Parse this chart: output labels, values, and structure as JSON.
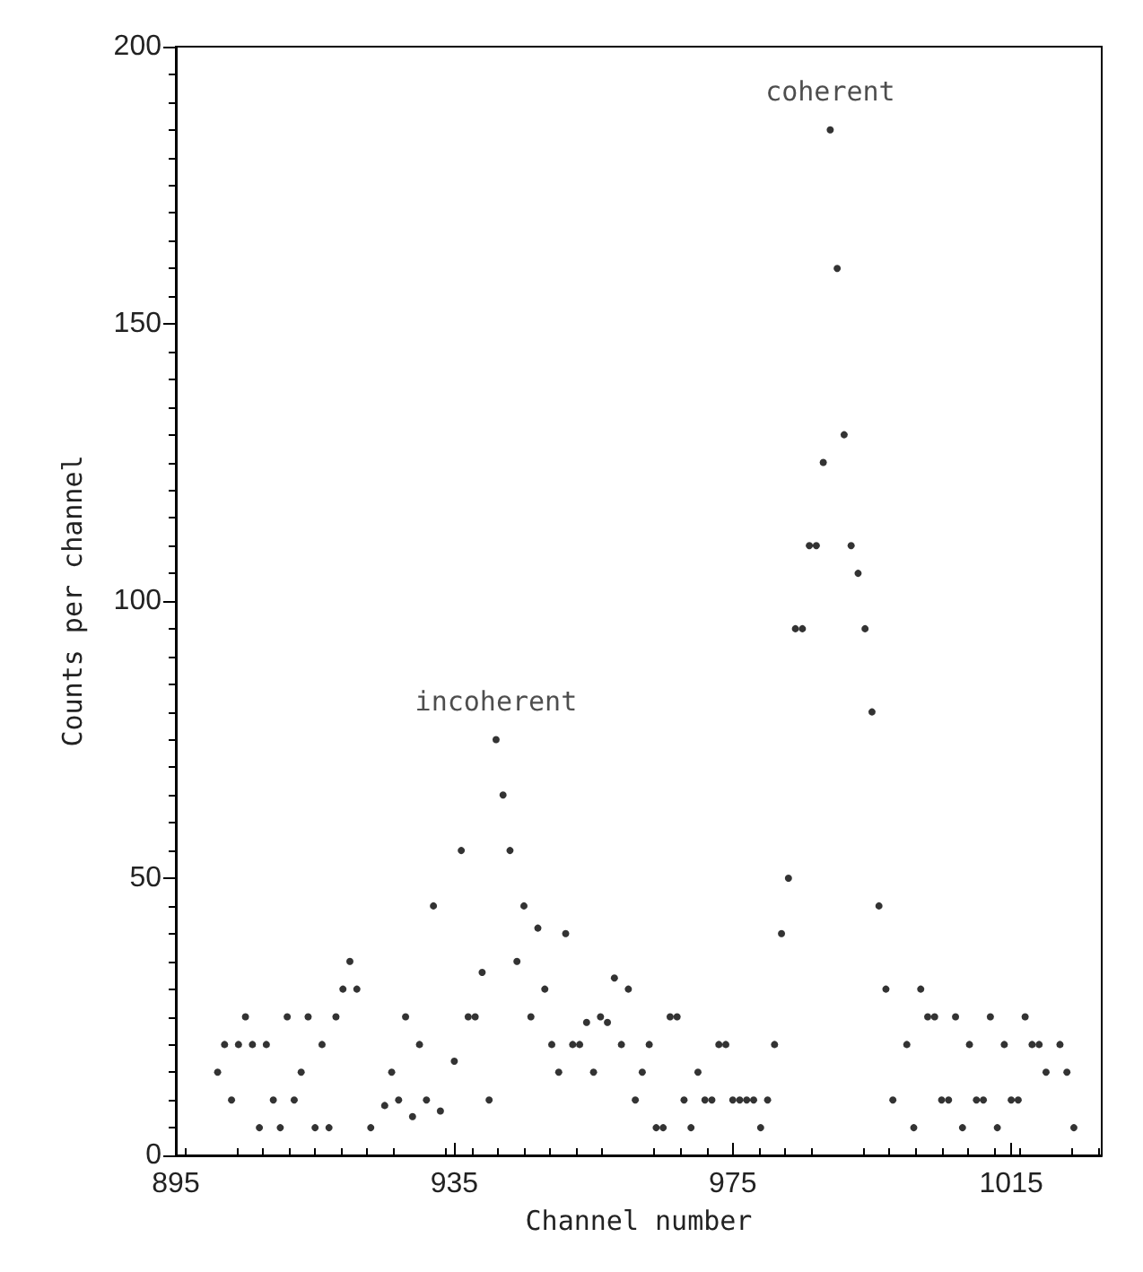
{
  "chart_data": {
    "type": "scatter",
    "xlabel": "Channel number",
    "ylabel": "Counts per channel",
    "x": [
      901,
      902,
      903,
      904,
      905,
      906,
      907,
      908,
      909,
      910,
      911,
      912,
      913,
      914,
      915,
      916,
      917,
      918,
      919,
      920,
      921,
      923,
      925,
      926,
      927,
      928,
      929,
      930,
      931,
      932,
      933,
      935,
      936,
      937,
      938,
      939,
      940,
      941,
      942,
      943,
      944,
      945,
      946,
      947,
      948,
      949,
      950,
      951,
      952,
      953,
      954,
      955,
      956,
      957,
      958,
      959,
      960,
      961,
      962,
      963,
      964,
      965,
      966,
      967,
      968,
      969,
      970,
      971,
      972,
      973,
      974,
      975,
      976,
      977,
      978,
      979,
      980,
      981,
      982,
      983,
      984,
      985,
      986,
      987,
      988,
      989,
      990,
      991,
      992,
      993,
      994,
      995,
      996,
      997,
      998,
      1000,
      1001,
      1002,
      1003,
      1004,
      1005,
      1006,
      1007,
      1008,
      1009,
      1010,
      1011,
      1012,
      1013,
      1014,
      1015,
      1016,
      1017,
      1018,
      1019,
      1020,
      1022,
      1023,
      1024
    ],
    "series": [
      {
        "color": "#000000",
        "values": [
          15,
          20,
          10,
          20,
          25,
          20,
          5,
          20,
          10,
          5,
          25,
          10,
          15,
          25,
          5,
          20,
          5,
          25,
          30,
          35,
          30,
          5,
          9,
          15,
          10,
          25,
          7,
          20,
          10,
          45,
          8,
          17,
          55,
          25,
          25,
          33,
          10,
          75,
          65,
          55,
          35,
          45,
          25,
          41,
          30,
          20,
          15,
          40,
          20,
          20,
          24,
          15,
          25,
          24,
          32,
          20,
          30,
          10,
          15,
          20,
          5,
          5,
          25,
          25,
          10,
          5,
          15,
          10,
          10,
          20,
          20,
          10,
          10,
          10,
          10,
          5,
          10,
          20,
          40,
          50,
          95,
          95,
          110,
          110,
          125,
          185,
          160,
          130,
          110,
          105,
          95,
          80,
          45,
          30,
          10,
          20,
          5,
          30,
          25,
          25,
          10,
          10,
          25,
          5,
          20,
          10,
          10,
          25,
          5,
          20,
          10,
          10,
          25,
          20,
          20,
          15,
          20,
          15,
          5
        ]
      }
    ],
    "xlim": [
      895,
      1028
    ],
    "xticks": [
      895,
      935,
      975,
      1015
    ],
    "ylim": [
      0,
      200
    ],
    "yticks": [
      0,
      50,
      100,
      150,
      200
    ],
    "grid": false,
    "marker": "circle",
    "annotations": [
      {
        "text": "incoherent",
        "x": 941,
        "y": 75
      },
      {
        "text": "coherent",
        "x": 989,
        "y": 185
      }
    ]
  }
}
